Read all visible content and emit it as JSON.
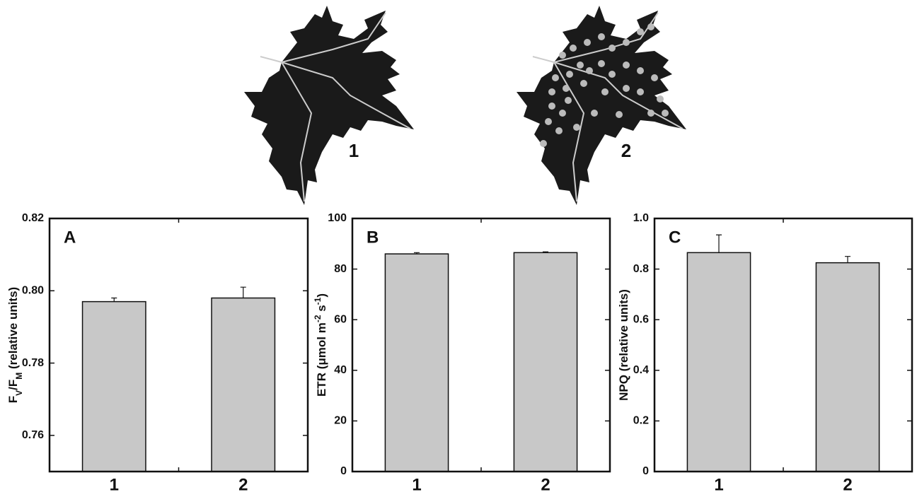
{
  "leaf_labels": [
    "1",
    "2"
  ],
  "chart_data": [
    {
      "type": "bar",
      "panel_label": "A",
      "ylabel": [
        "F",
        "V",
        "/F",
        "M",
        " (relative units)"
      ],
      "categories": [
        "1",
        "2"
      ],
      "values": [
        0.797,
        0.798
      ],
      "errors": [
        0.001,
        0.003
      ],
      "color": "#c8c8c8",
      "ylim": [
        0.75,
        0.82
      ],
      "yticks": [
        0.76,
        0.78,
        {
          "value": 0.8,
          "label": "0.80"
        },
        0.82
      ],
      "grid": false
    },
    {
      "type": "bar",
      "panel_label": "B",
      "ylabel": [
        "ETR (μmol m",
        "-2",
        " s",
        "-1",
        ")"
      ],
      "categories": [
        "1",
        "2"
      ],
      "values": [
        86,
        86.5
      ],
      "errors": [
        0.5,
        0.3
      ],
      "color": "#c8c8c8",
      "ylim": [
        0,
        100
      ],
      "yticks": [
        0,
        20,
        40,
        60,
        80,
        100
      ],
      "grid": false
    },
    {
      "type": "bar",
      "panel_label": "C",
      "ylabel": [
        "NPQ (relative units)"
      ],
      "categories": [
        "1",
        "2"
      ],
      "values": [
        0.865,
        0.825
      ],
      "errors": [
        0.07,
        0.025
      ],
      "color": "#c8c8c8",
      "ylim": [
        0,
        1
      ],
      "yticks": [
        0,
        0.2,
        0.4,
        0.6,
        0.8,
        {
          "value": 1,
          "label": "1.0"
        }
      ],
      "grid": false
    }
  ]
}
